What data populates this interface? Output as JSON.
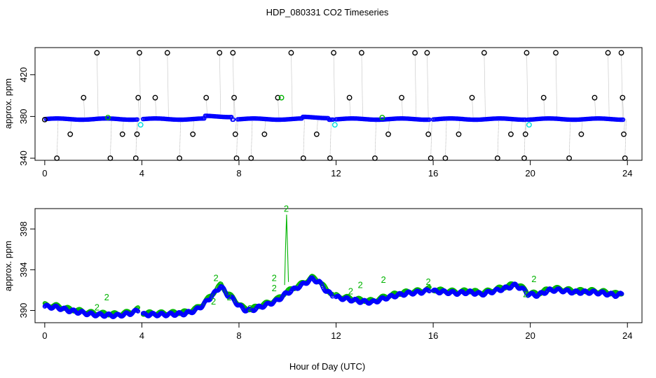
{
  "chart_data": {
    "title": "HDP_080331  CO2 Timeseries",
    "xlabel": "Hour of Day (UTC)",
    "colors": {
      "calib": "#000000",
      "sample": "#0000ff",
      "flagged": "#00b400",
      "cyan": "#00dddd"
    },
    "panels": [
      {
        "id": "top",
        "type": "scatter",
        "ylabel": "approx. ppm",
        "xlim": [
          -0.4,
          24.6
        ],
        "ylim": [
          338,
          446
        ],
        "xticks": [
          0,
          4,
          8,
          12,
          16,
          20,
          24
        ],
        "xtick_labels": [
          "0",
          "4",
          "8",
          "12",
          "16",
          "20",
          "24"
        ],
        "yticks": [
          340,
          380,
          420
        ],
        "ytick_labels": [
          "340",
          "380",
          "420"
        ],
        "baseline_segments": [
          {
            "x0": 0.05,
            "x1": 3.85,
            "y": 377.5
          },
          {
            "x0": 4.05,
            "x1": 7.8,
            "y": 377.5
          },
          {
            "x0": 7.95,
            "x1": 11.9,
            "y": 377.5
          },
          {
            "x0": 12.0,
            "x1": 15.85,
            "y": 377.5
          },
          {
            "x0": 16.0,
            "x1": 19.8,
            "y": 377.5
          },
          {
            "x0": 19.9,
            "x1": 23.85,
            "y": 377.5
          }
        ],
        "calibration_points": [
          {
            "x": 0.0,
            "y": 377
          },
          {
            "x": 0.5,
            "y": 340
          },
          {
            "x": 1.05,
            "y": 363
          },
          {
            "x": 1.6,
            "y": 398
          },
          {
            "x": 2.15,
            "y": 441
          },
          {
            "x": 2.7,
            "y": 340
          },
          {
            "x": 3.2,
            "y": 363
          },
          {
            "x": 3.75,
            "y": 340
          },
          {
            "x": 3.8,
            "y": 363
          },
          {
            "x": 3.85,
            "y": 398
          },
          {
            "x": 3.9,
            "y": 441
          },
          {
            "x": 4.55,
            "y": 398
          },
          {
            "x": 5.05,
            "y": 441
          },
          {
            "x": 5.55,
            "y": 340
          },
          {
            "x": 6.1,
            "y": 363
          },
          {
            "x": 6.65,
            "y": 398
          },
          {
            "x": 7.2,
            "y": 441
          },
          {
            "x": 7.75,
            "y": 441
          },
          {
            "x": 7.8,
            "y": 398
          },
          {
            "x": 7.85,
            "y": 363
          },
          {
            "x": 7.9,
            "y": 340
          },
          {
            "x": 8.5,
            "y": 340
          },
          {
            "x": 9.05,
            "y": 363
          },
          {
            "x": 9.6,
            "y": 398
          },
          {
            "x": 10.15,
            "y": 441
          },
          {
            "x": 10.65,
            "y": 340
          },
          {
            "x": 11.2,
            "y": 363
          },
          {
            "x": 11.75,
            "y": 340
          },
          {
            "x": 11.9,
            "y": 441
          },
          {
            "x": 12.55,
            "y": 398
          },
          {
            "x": 13.05,
            "y": 441
          },
          {
            "x": 13.6,
            "y": 340
          },
          {
            "x": 14.15,
            "y": 363
          },
          {
            "x": 14.7,
            "y": 398
          },
          {
            "x": 15.25,
            "y": 441
          },
          {
            "x": 15.75,
            "y": 441
          },
          {
            "x": 15.8,
            "y": 363
          },
          {
            "x": 15.9,
            "y": 340
          },
          {
            "x": 16.5,
            "y": 340
          },
          {
            "x": 17.05,
            "y": 363
          },
          {
            "x": 17.6,
            "y": 398
          },
          {
            "x": 18.1,
            "y": 441
          },
          {
            "x": 18.65,
            "y": 340
          },
          {
            "x": 19.2,
            "y": 363
          },
          {
            "x": 19.75,
            "y": 340
          },
          {
            "x": 19.8,
            "y": 363
          },
          {
            "x": 19.85,
            "y": 441
          },
          {
            "x": 20.55,
            "y": 398
          },
          {
            "x": 21.05,
            "y": 441
          },
          {
            "x": 21.6,
            "y": 340
          },
          {
            "x": 22.1,
            "y": 363
          },
          {
            "x": 22.65,
            "y": 398
          },
          {
            "x": 23.2,
            "y": 441
          },
          {
            "x": 23.75,
            "y": 441
          },
          {
            "x": 23.8,
            "y": 398
          },
          {
            "x": 23.85,
            "y": 363
          },
          {
            "x": 23.9,
            "y": 340
          }
        ],
        "highlight_points": [
          {
            "x": 3.95,
            "y": 372,
            "color": "cyan"
          },
          {
            "x": 11.95,
            "y": 372,
            "color": "cyan"
          },
          {
            "x": 19.95,
            "y": 372,
            "color": "cyan"
          },
          {
            "x": 9.75,
            "y": 398,
            "color": "flagged"
          },
          {
            "x": 2.6,
            "y": 379,
            "color": "flagged"
          },
          {
            "x": 13.9,
            "y": 379,
            "color": "flagged"
          }
        ]
      },
      {
        "id": "bottom",
        "type": "scatter",
        "ylabel": "approx. ppm",
        "xlim": [
          -0.4,
          24.6
        ],
        "ylim": [
          388.8,
          400.0
        ],
        "xticks": [
          0,
          4,
          8,
          12,
          16,
          20,
          24
        ],
        "xtick_labels": [
          "0",
          "4",
          "8",
          "12",
          "16",
          "20",
          "24"
        ],
        "yticks": [
          390,
          394,
          398
        ],
        "ytick_labels": [
          "390",
          "394",
          "398"
        ],
        "series_keypoints": [
          [
            0.0,
            390.4
          ],
          [
            0.5,
            390.3
          ],
          [
            1.0,
            390.0
          ],
          [
            1.5,
            389.8
          ],
          [
            2.0,
            389.6
          ],
          [
            3.0,
            389.5
          ],
          [
            3.5,
            389.7
          ],
          [
            3.85,
            390.0
          ],
          [
            4.05,
            389.6
          ],
          [
            5.0,
            389.6
          ],
          [
            5.8,
            389.7
          ],
          [
            6.2,
            390.0
          ],
          [
            6.5,
            390.5
          ],
          [
            6.8,
            391.2
          ],
          [
            7.1,
            392.0
          ],
          [
            7.25,
            392.4
          ],
          [
            7.5,
            391.6
          ],
          [
            7.8,
            391.0
          ],
          [
            7.95,
            390.6
          ],
          [
            8.2,
            390.1
          ],
          [
            8.5,
            390.0
          ],
          [
            8.8,
            390.3
          ],
          [
            9.2,
            390.6
          ],
          [
            9.6,
            391.0
          ],
          [
            9.9,
            391.6
          ],
          [
            10.2,
            392.0
          ],
          [
            10.6,
            392.5
          ],
          [
            11.0,
            393.1
          ],
          [
            11.3,
            392.8
          ],
          [
            11.6,
            391.9
          ],
          [
            11.85,
            391.5
          ],
          [
            12.0,
            391.3
          ],
          [
            12.5,
            391.1
          ],
          [
            13.0,
            390.9
          ],
          [
            13.5,
            390.8
          ],
          [
            14.0,
            391.2
          ],
          [
            14.5,
            391.5
          ],
          [
            15.0,
            391.7
          ],
          [
            15.5,
            391.8
          ],
          [
            15.85,
            392.0
          ],
          [
            16.0,
            391.9
          ],
          [
            16.5,
            391.8
          ],
          [
            17.0,
            391.7
          ],
          [
            17.5,
            391.8
          ],
          [
            18.0,
            391.6
          ],
          [
            18.5,
            391.9
          ],
          [
            19.0,
            392.2
          ],
          [
            19.4,
            392.5
          ],
          [
            19.8,
            391.9
          ],
          [
            19.9,
            391.6
          ],
          [
            20.3,
            391.5
          ],
          [
            20.8,
            392.0
          ],
          [
            21.2,
            392.0
          ],
          [
            21.8,
            391.8
          ],
          [
            22.5,
            391.8
          ],
          [
            23.0,
            391.7
          ],
          [
            23.5,
            391.5
          ],
          [
            23.8,
            391.6
          ]
        ],
        "segment_breaks": [
          3.85,
          11.85,
          15.85,
          19.85
        ],
        "spike": {
          "x": [
            9.88,
            9.92,
            9.96,
            10.0,
            10.04
          ],
          "y": [
            392.5,
            396.4,
            399.4,
            396.0,
            392.8
          ]
        },
        "flag_label": "2",
        "flag_labels": [
          {
            "x": 2.55,
            "y": 391.0
          },
          {
            "x": 7.05,
            "y": 392.9
          },
          {
            "x": 6.95,
            "y": 390.6
          },
          {
            "x": 7.6,
            "y": 391.0
          },
          {
            "x": 9.45,
            "y": 392.9
          },
          {
            "x": 9.45,
            "y": 391.9
          },
          {
            "x": 9.95,
            "y": 399.7
          },
          {
            "x": 12.6,
            "y": 391.6
          },
          {
            "x": 13.0,
            "y": 392.2
          },
          {
            "x": 13.95,
            "y": 392.7
          },
          {
            "x": 15.8,
            "y": 392.5
          },
          {
            "x": 20.15,
            "y": 392.8
          },
          {
            "x": 19.8,
            "y": 391.3
          },
          {
            "x": 8.45,
            "y": 389.9
          },
          {
            "x": 2.15,
            "y": 390.0
          }
        ]
      }
    ]
  }
}
